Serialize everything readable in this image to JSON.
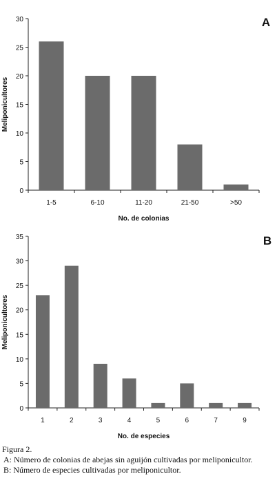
{
  "chart_data": [
    {
      "type": "bar",
      "panel_label": "A",
      "categories": [
        "1-5",
        "6-10",
        "11-20",
        "21-50",
        ">50"
      ],
      "values": [
        26,
        20,
        20,
        8,
        1
      ],
      "xlabel": "No. de colonias",
      "ylabel": "Meliponicultores",
      "ylim": [
        0,
        30
      ],
      "yticks": [
        0,
        5,
        10,
        15,
        20,
        25,
        30
      ],
      "grid": false,
      "bar_color": "#6b6b6b"
    },
    {
      "type": "bar",
      "panel_label": "B",
      "categories": [
        "1",
        "2",
        "3",
        "4",
        "5",
        "6",
        "7",
        "9"
      ],
      "values": [
        23,
        29,
        9,
        6,
        1,
        5,
        1,
        1
      ],
      "xlabel": "No. de especies",
      "ylabel": "Meliponicultores",
      "ylim": [
        0,
        35
      ],
      "yticks": [
        0,
        5,
        10,
        15,
        20,
        25,
        30,
        35
      ],
      "grid": false,
      "bar_color": "#6b6b6b"
    }
  ],
  "caption": {
    "title": "Figura 2.",
    "line_a": "A: Número de colonias de abejas sin aguijón cultivadas por meliponicultor.",
    "line_b": "B: Número de especies cultivadas por meliponicultor."
  }
}
